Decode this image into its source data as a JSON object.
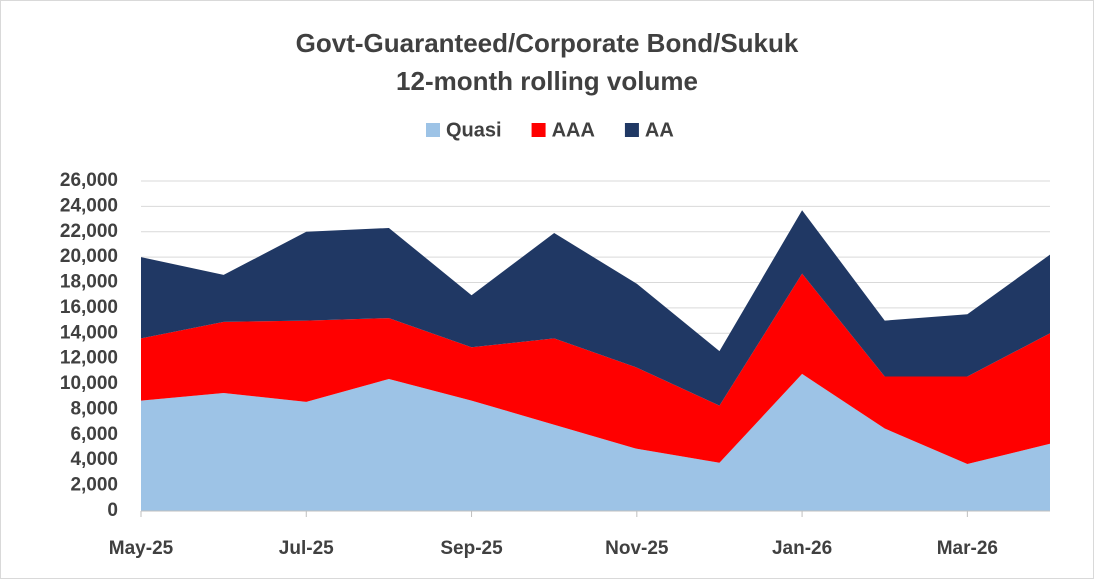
{
  "chart_data": {
    "type": "stacked_area",
    "title": "Govt-Guaranteed/Corporate Bond/Sukuk",
    "subtitle": "12-month rolling volume",
    "categories": [
      "May-25",
      null,
      "Jul-25",
      null,
      "Sep-25",
      null,
      "Nov-25",
      null,
      "Jan-26",
      null,
      "Mar-26",
      null
    ],
    "series": [
      {
        "name": "Quasi",
        "color": "#9dc3e6",
        "values": [
          8700,
          9300,
          8600,
          10400,
          8700,
          6800,
          4900,
          3800,
          10800,
          6500,
          3700,
          5300
        ]
      },
      {
        "name": "AAA",
        "color": "#ff0000",
        "values": [
          4900,
          5600,
          6400,
          4800,
          4200,
          6800,
          6400,
          4500,
          7900,
          4100,
          6900,
          8700
        ]
      },
      {
        "name": "AA",
        "color": "#203864",
        "values": [
          6400,
          3700,
          7000,
          7100,
          4100,
          8300,
          6600,
          4300,
          5000,
          4400,
          4900,
          6200
        ]
      }
    ],
    "ylim": [
      0,
      26000
    ],
    "yticks": [
      0,
      {
        "value": 2000,
        "label": "2,000"
      },
      {
        "value": 4000,
        "label": "4,000"
      },
      {
        "value": 6000,
        "label": "6,000"
      },
      {
        "value": 8000,
        "label": "8,000"
      },
      {
        "value": 10000,
        "label": "10,000"
      },
      {
        "value": 12000,
        "label": "12,000"
      },
      {
        "value": 14000,
        "label": "14,000"
      },
      {
        "value": 16000,
        "label": "16,000"
      },
      {
        "value": 18000,
        "label": "18,000"
      },
      {
        "value": 20000,
        "label": "20,000"
      },
      {
        "value": 22000,
        "label": "22,000"
      },
      {
        "value": 24000,
        "label": "24,000"
      },
      {
        "value": 26000,
        "label": "26,000"
      }
    ],
    "grid": true,
    "legend": "top"
  }
}
